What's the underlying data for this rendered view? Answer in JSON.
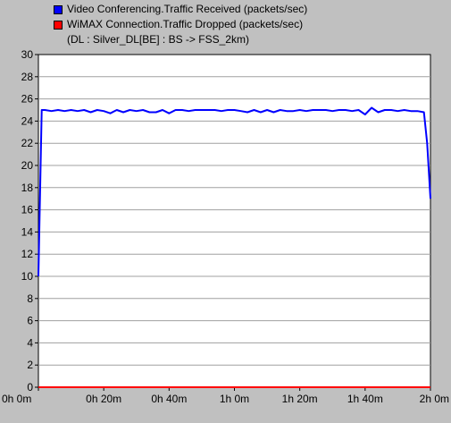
{
  "chart_data": {
    "type": "line",
    "title": "",
    "xlabel": "",
    "ylabel": "",
    "ylim": [
      0,
      30
    ],
    "xlim_minutes": [
      0,
      120
    ],
    "y_ticks": [
      0,
      2,
      4,
      6,
      8,
      10,
      12,
      14,
      16,
      18,
      20,
      22,
      24,
      26,
      28,
      30
    ],
    "y_tick_labels": [
      "0",
      "2",
      "4",
      "6",
      "8",
      "10",
      "12",
      "14",
      "16",
      "18",
      "20",
      "22",
      "24",
      "26",
      "28",
      "30"
    ],
    "x_ticks_minutes": [
      0,
      20,
      40,
      60,
      80,
      100,
      120
    ],
    "x_tick_labels": [
      "0h 0m",
      "0h 20m",
      "0h 40m",
      "1h 0m",
      "1h 20m",
      "1h 40m",
      "2h 0m"
    ],
    "grid": "horizontal",
    "legend": {
      "placement": "top",
      "entries": [
        {
          "label": "Video Conferencing.Traffic Received (packets/sec)",
          "color": "#0000ff"
        },
        {
          "label": "WiMAX Connection.Traffic Dropped (packets/sec)",
          "color": "#ff0000"
        }
      ],
      "subtitle": "(DL : Silver_DL[BE] : BS -> FSS_2km)"
    },
    "series": [
      {
        "name": "Video Conferencing.Traffic Received (packets/sec)",
        "color": "#0000ff",
        "x_minutes": [
          0,
          1,
          2,
          4,
          6,
          8,
          10,
          12,
          14,
          16,
          18,
          20,
          22,
          24,
          26,
          28,
          30,
          32,
          34,
          36,
          38,
          40,
          42,
          44,
          46,
          48,
          50,
          52,
          54,
          56,
          58,
          60,
          62,
          64,
          66,
          68,
          70,
          72,
          74,
          76,
          78,
          80,
          82,
          84,
          86,
          88,
          90,
          92,
          94,
          96,
          98,
          100,
          102,
          104,
          106,
          108,
          110,
          112,
          114,
          116,
          118,
          119,
          120
        ],
        "y": [
          10,
          25,
          25,
          24.9,
          25,
          24.9,
          25,
          24.9,
          25,
          24.8,
          25,
          24.9,
          24.7,
          25,
          24.8,
          25,
          24.9,
          25,
          24.8,
          24.8,
          25,
          24.7,
          25,
          25,
          24.9,
          25,
          25,
          25,
          25,
          24.9,
          25,
          25,
          24.9,
          24.8,
          25,
          24.8,
          25,
          24.8,
          25,
          24.9,
          24.9,
          25,
          24.9,
          25,
          25,
          25,
          24.9,
          25,
          25,
          24.9,
          25,
          24.6,
          25.2,
          24.8,
          25,
          25,
          24.9,
          25,
          24.9,
          24.9,
          24.8,
          22,
          17
        ]
      },
      {
        "name": "WiMAX Connection.Traffic Dropped (packets/sec)",
        "color": "#ff0000",
        "x_minutes": [
          0,
          120
        ],
        "y": [
          0,
          0
        ]
      }
    ]
  }
}
